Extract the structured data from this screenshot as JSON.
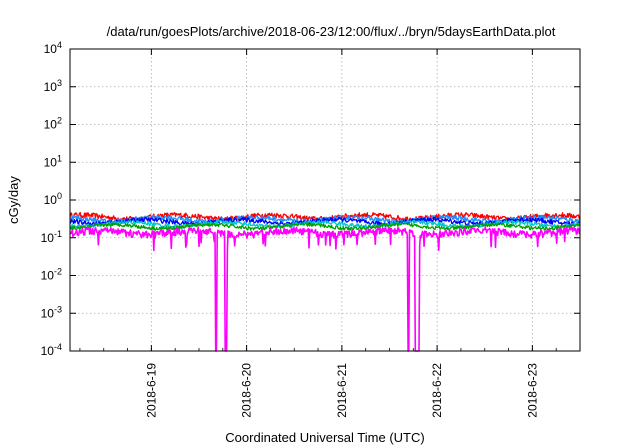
{
  "chart_data": {
    "type": "line",
    "title": "/data/run/goesPlots/archive/2018-06-23/12:00/flux/../bryn/5daysEarthData.plot",
    "xlabel": "Coordinated Universal Time (UTC)",
    "ylabel": "cGy/day",
    "yscale": "log",
    "ylim": [
      0.0001,
      10000
    ],
    "xlim": [
      "2018-06-18 03:30",
      "2018-06-23 12:00"
    ],
    "grid": true,
    "legend": "none",
    "x_ticks": [
      "2018-6-19",
      "2018-6-20",
      "2018-6-21",
      "2018-6-22",
      "2018-6-23"
    ],
    "y_ticks": [
      {
        "base": "10",
        "exp": "-4"
      },
      {
        "base": "10",
        "exp": "-3"
      },
      {
        "base": "10",
        "exp": "-2"
      },
      {
        "base": "10",
        "exp": "-1"
      },
      {
        "base": "10",
        "exp": "0"
      },
      {
        "base": "10",
        "exp": "1"
      },
      {
        "base": "10",
        "exp": "2"
      },
      {
        "base": "10",
        "exp": "3"
      },
      {
        "base": "10",
        "exp": "4"
      }
    ],
    "series": [
      {
        "color": "#ff0000",
        "level": 0.36,
        "noise": 0.16
      },
      {
        "color": "#1e90ff",
        "level": 0.31,
        "noise": 0.15
      },
      {
        "color": "#0000ff",
        "level": 0.27,
        "noise": 0.14
      },
      {
        "color": "#00c8c8",
        "level": 0.23,
        "noise": 0.12
      },
      {
        "color": "#00a000",
        "level": 0.2,
        "noise": 0.11
      },
      {
        "color": "#ff00ff",
        "level": 0.14,
        "noise": 0.22
      }
    ],
    "dropouts": [
      {
        "start": "2018-06-19 16:10",
        "end": "2018-06-19 16:30"
      },
      {
        "start": "2018-06-19 18:30",
        "end": "2018-06-19 19:00"
      },
      {
        "start": "2018-06-21 16:30",
        "end": "2018-06-21 17:00"
      },
      {
        "start": "2018-06-21 18:30",
        "end": "2018-06-21 19:30"
      }
    ]
  }
}
